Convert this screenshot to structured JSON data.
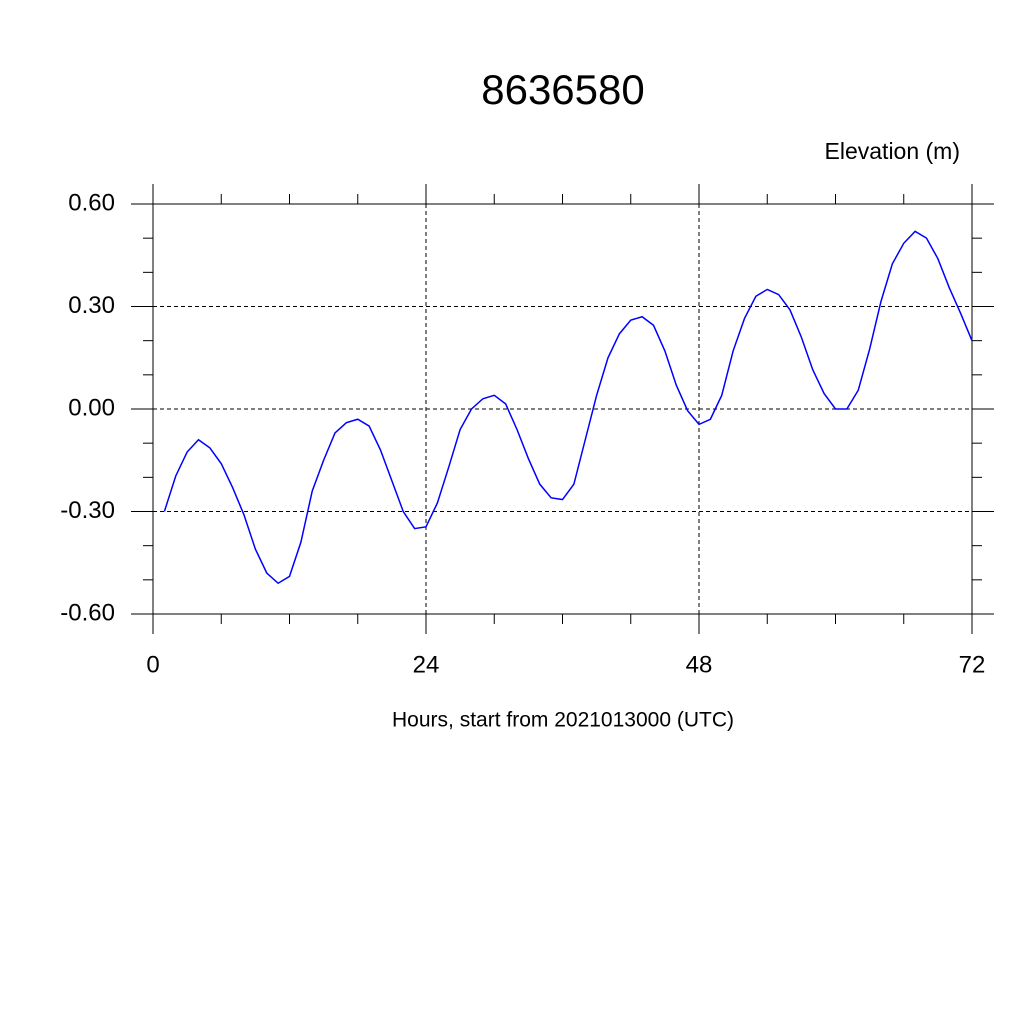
{
  "chart_data": {
    "type": "line",
    "title": "8636580",
    "ylabel": "Elevation (m)",
    "xlabel": "Hours, start from 2021013000 (UTC)",
    "x": [
      1,
      2,
      3,
      4,
      5,
      6,
      7,
      8,
      9,
      10,
      11,
      12,
      13,
      14,
      15,
      16,
      17,
      18,
      19,
      20,
      21,
      22,
      23,
      24,
      25,
      26,
      27,
      28,
      29,
      30,
      31,
      32,
      33,
      34,
      35,
      36,
      37,
      38,
      39,
      40,
      41,
      42,
      43,
      44,
      45,
      46,
      47,
      48,
      49,
      50,
      51,
      52,
      53,
      54,
      55,
      56,
      57,
      58,
      59,
      60,
      61,
      62,
      63,
      64,
      65,
      66,
      67,
      68,
      69,
      70,
      71,
      72
    ],
    "series": [
      {
        "color": "#0000ff",
        "values": [
          -0.3,
          -0.196,
          -0.126,
          -0.09,
          -0.114,
          -0.16,
          -0.23,
          -0.31,
          -0.41,
          -0.48,
          -0.51,
          -0.49,
          -0.39,
          -0.24,
          -0.15,
          -0.07,
          -0.04,
          -0.03,
          -0.05,
          -0.12,
          -0.21,
          -0.3,
          -0.35,
          -0.345,
          -0.275,
          -0.17,
          -0.06,
          0.0,
          0.03,
          0.04,
          0.015,
          -0.06,
          -0.145,
          -0.22,
          -0.26,
          -0.265,
          -0.22,
          -0.09,
          0.04,
          0.15,
          0.22,
          0.26,
          0.27,
          0.245,
          0.17,
          0.07,
          -0.005,
          -0.045,
          -0.03,
          0.04,
          0.17,
          0.265,
          0.33,
          0.35,
          0.335,
          0.29,
          0.21,
          0.115,
          0.045,
          0.0,
          0.0,
          0.055,
          0.175,
          0.315,
          0.425,
          0.485,
          0.52,
          0.5,
          0.44,
          0.355,
          0.28,
          0.2
        ]
      }
    ],
    "xlim": [
      0,
      72
    ],
    "xticks": [
      0,
      24,
      48,
      72
    ],
    "xminorticks": [
      6,
      12,
      18,
      30,
      36,
      42,
      54,
      60,
      66
    ],
    "ylim": [
      -0.6,
      0.6
    ],
    "yticks": [
      {
        "value": -0.6,
        "label": "-0.60"
      },
      {
        "value": -0.3,
        "label": "-0.30"
      },
      {
        "value": 0,
        "label": "0.00"
      },
      {
        "value": 0.3,
        "label": "0.30"
      },
      {
        "value": 0.6,
        "label": "0.60"
      }
    ],
    "yminorticks": [
      -0.5,
      -0.4,
      -0.2,
      -0.1,
      0.1,
      0.2,
      0.4,
      0.5
    ],
    "grid": true
  }
}
